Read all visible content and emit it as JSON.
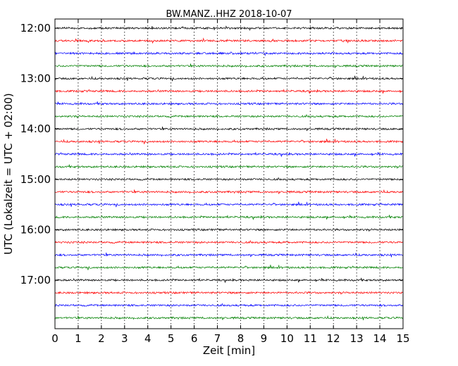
{
  "chart_data": {
    "type": "line",
    "title": "BW.MANZ..HHZ 2018-10-07",
    "xlabel": "Zeit  [min]",
    "ylabel": "UTC (Lokalzeit = UTC + 02:00)",
    "xlim": [
      0,
      15
    ],
    "x_ticks": [
      "0",
      "1",
      "2",
      "3",
      "4",
      "5",
      "6",
      "7",
      "8",
      "9",
      "10",
      "11",
      "12",
      "13",
      "14",
      "15"
    ],
    "y_ticks": [
      "12:00",
      "13:00",
      "14:00",
      "15:00",
      "16:00",
      "17:00"
    ],
    "grid": "vertical-dotted",
    "trace_colors": [
      "#000000",
      "#ff0000",
      "#0000ff",
      "#008000"
    ],
    "series": [
      {
        "start": "12:00"
      },
      {
        "start": "12:15"
      },
      {
        "start": "12:30"
      },
      {
        "start": "12:45"
      },
      {
        "start": "13:00"
      },
      {
        "start": "13:15"
      },
      {
        "start": "13:30"
      },
      {
        "start": "13:45"
      },
      {
        "start": "14:00"
      },
      {
        "start": "14:15"
      },
      {
        "start": "14:30"
      },
      {
        "start": "14:45"
      },
      {
        "start": "15:00"
      },
      {
        "start": "15:15"
      },
      {
        "start": "15:30"
      },
      {
        "start": "15:45"
      },
      {
        "start": "16:00"
      },
      {
        "start": "16:15"
      },
      {
        "start": "16:30"
      },
      {
        "start": "16:45"
      },
      {
        "start": "17:00"
      },
      {
        "start": "17:15"
      },
      {
        "start": "17:30"
      },
      {
        "start": "17:45"
      }
    ]
  }
}
